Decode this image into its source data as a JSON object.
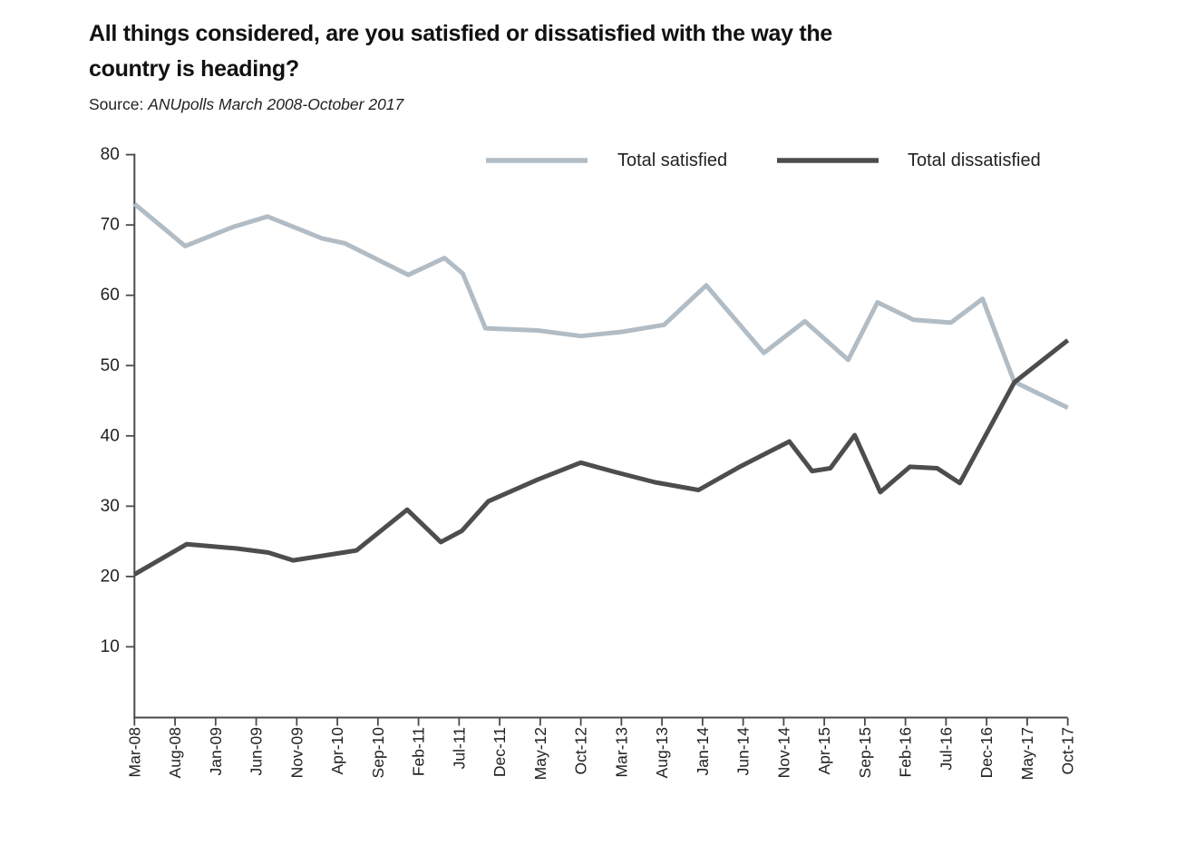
{
  "header": {
    "title_line1": "All things considered, are you satisfied or dissatisfied with the way the",
    "title_line2": "country is heading?",
    "source_prefix": "Source:",
    "source_text": "ANUpolls March 2008-October 2017"
  },
  "chart_data": {
    "type": "line",
    "title": "All things considered, are you satisfied or dissatisfied with the way the country is heading?",
    "source": "Source: ANUpolls March 2008-October 2017",
    "xlabel": "",
    "ylabel": "",
    "ylim": [
      0,
      80
    ],
    "y_ticks": [
      10,
      20,
      30,
      40,
      50,
      60,
      70,
      80
    ],
    "x_tick_labels": [
      "Mar-08",
      "Aug-08",
      "Jan-09",
      "Jun-09",
      "Nov-09",
      "Apr-10",
      "Sep-10",
      "Feb-11",
      "Jul-11",
      "Dec-11",
      "May-12",
      "Oct-12",
      "Mar-13",
      "Aug-13",
      "Jan-14",
      "Jun-14",
      "Nov-14",
      "Apr-15",
      "Sep-15",
      "Feb-16",
      "Jul-16",
      "Dec-16",
      "May-17",
      "Oct-17"
    ],
    "grid": false,
    "legend_position": "top",
    "series": [
      {
        "name": "Total satisfied",
        "color": "#b1bcc5",
        "points": [
          [
            0,
            73
          ],
          [
            1.25,
            67
          ],
          [
            2.42,
            69.7
          ],
          [
            3.28,
            71.2
          ],
          [
            4.62,
            68.1
          ],
          [
            5.18,
            67.4
          ],
          [
            6.75,
            62.9
          ],
          [
            7.64,
            65.3
          ],
          [
            8.09,
            63.1
          ],
          [
            8.65,
            55.3
          ],
          [
            9.94,
            55
          ],
          [
            11,
            54.2
          ],
          [
            12.02,
            54.8
          ],
          [
            13.05,
            55.8
          ],
          [
            14.09,
            61.4
          ],
          [
            15.51,
            51.8
          ],
          [
            16.52,
            56.3
          ],
          [
            17.59,
            50.8
          ],
          [
            18.31,
            59
          ],
          [
            19.2,
            56.5
          ],
          [
            20.12,
            56.1
          ],
          [
            20.9,
            59.5
          ],
          [
            21.68,
            47.7
          ],
          [
            23,
            44
          ]
        ]
      },
      {
        "name": "Total dissatisfied",
        "color": "#4d4d4d",
        "points": [
          [
            0,
            20.3
          ],
          [
            1.29,
            24.6
          ],
          [
            2.5,
            24
          ],
          [
            3.3,
            23.4
          ],
          [
            3.91,
            22.3
          ],
          [
            5.47,
            23.7
          ],
          [
            6.72,
            29.5
          ],
          [
            7.55,
            24.9
          ],
          [
            8.07,
            26.5
          ],
          [
            8.72,
            30.7
          ],
          [
            9.94,
            33.8
          ],
          [
            11,
            36.2
          ],
          [
            11.82,
            34.9
          ],
          [
            12.83,
            33.4
          ],
          [
            13.9,
            32.3
          ],
          [
            14.95,
            35.7
          ],
          [
            16.14,
            39.2
          ],
          [
            16.7,
            35
          ],
          [
            17.15,
            35.4
          ],
          [
            17.75,
            40.1
          ],
          [
            18.38,
            32
          ],
          [
            19.11,
            35.6
          ],
          [
            19.78,
            35.4
          ],
          [
            20.34,
            33.3
          ],
          [
            21.68,
            47.6
          ],
          [
            23,
            53.6
          ]
        ]
      }
    ],
    "axis_color": "#4a4a4c",
    "label_color": "#231f20"
  }
}
